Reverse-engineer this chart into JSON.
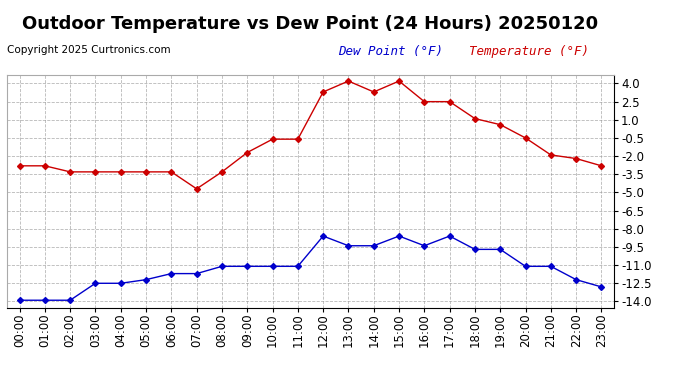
{
  "title": "Outdoor Temperature vs Dew Point (24 Hours) 20250120",
  "copyright": "Copyright 2025 Curtronics.com",
  "legend_dew": "Dew Point (°F)",
  "legend_temp": "Temperature (°F)",
  "hours": [
    "00:00",
    "01:00",
    "02:00",
    "03:00",
    "04:00",
    "05:00",
    "06:00",
    "07:00",
    "08:00",
    "09:00",
    "10:00",
    "11:00",
    "12:00",
    "13:00",
    "14:00",
    "15:00",
    "16:00",
    "17:00",
    "18:00",
    "19:00",
    "20:00",
    "21:00",
    "22:00",
    "23:00"
  ],
  "temperature": [
    -2.8,
    -2.8,
    -3.3,
    -3.3,
    -3.3,
    -3.3,
    -3.3,
    -4.7,
    -3.3,
    -1.7,
    -0.6,
    -0.6,
    3.3,
    4.2,
    3.3,
    4.2,
    2.5,
    2.5,
    1.1,
    0.6,
    -0.5,
    -1.9,
    -2.2,
    -2.8
  ],
  "dew_point": [
    -13.9,
    -13.9,
    -13.9,
    -12.5,
    -12.5,
    -12.2,
    -11.7,
    -11.7,
    -11.1,
    -11.1,
    -11.1,
    -11.1,
    -8.6,
    -9.4,
    -9.4,
    -8.6,
    -9.4,
    -8.6,
    -9.7,
    -9.7,
    -11.1,
    -11.1,
    -12.2,
    -12.8
  ],
  "temp_color": "#cc0000",
  "dew_color": "#0000cc",
  "marker": "D",
  "markersize": 3,
  "linewidth": 1.0,
  "bg_color": "#ffffff",
  "plot_bg": "#ffffff",
  "grid_color": "#999999",
  "ylim_min": -14.5,
  "ylim_max": 4.7,
  "yticks": [
    -14.0,
    -12.5,
    -11.0,
    -9.5,
    -8.0,
    -6.5,
    -5.0,
    -3.5,
    -2.0,
    -0.5,
    1.0,
    2.5,
    4.0
  ],
  "title_fontsize": 13,
  "tick_fontsize": 8.5,
  "copyright_fontsize": 7.5,
  "legend_fontsize": 9
}
